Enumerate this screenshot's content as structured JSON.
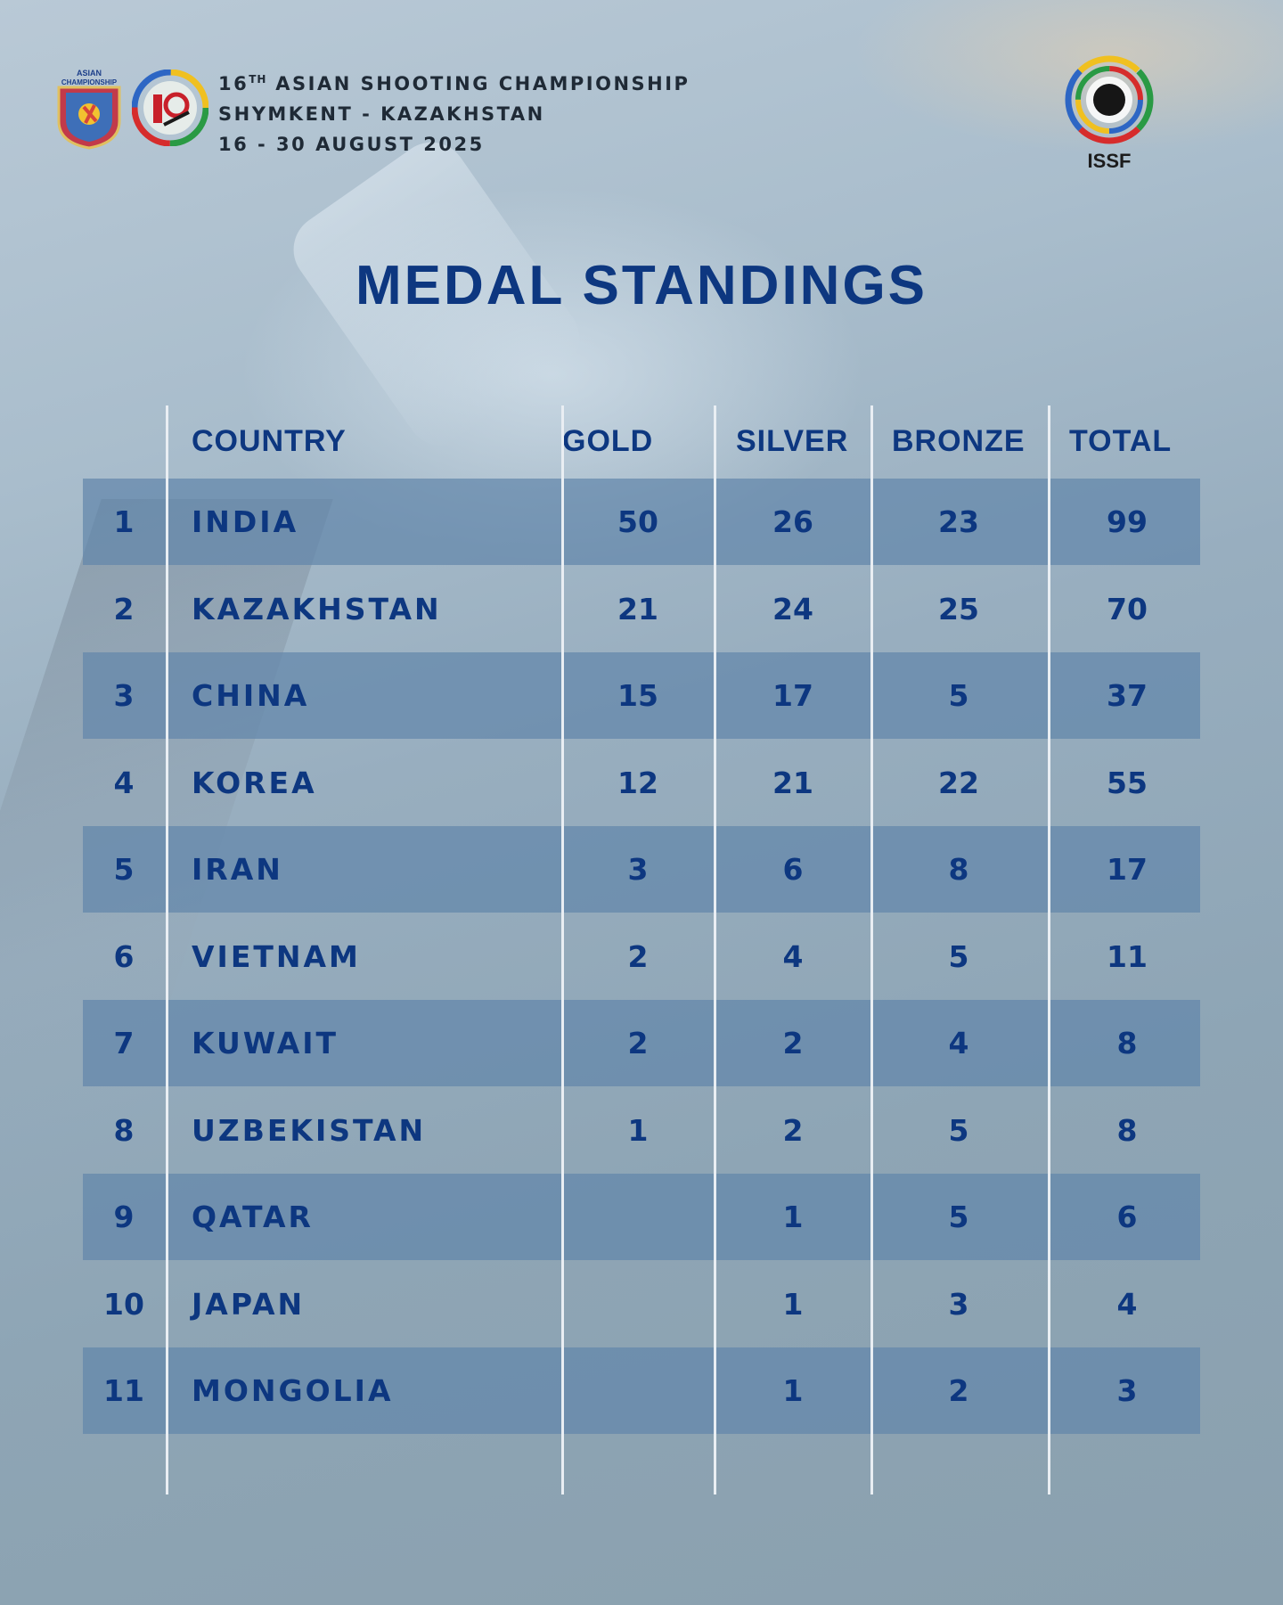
{
  "header": {
    "line1_prefix": "16",
    "line1_sup": "TH",
    "line1_rest": " ASIAN SHOOTING CHAMPIONSHIP",
    "line2": "SHYMKENT - KAZAKHSTAN",
    "line3": "16 - 30 AUGUST 2025",
    "asian_logo_text_top": "ASIAN",
    "asian_logo_text_bottom": "CHAMPIONSHIP",
    "issf_label": "ISSF"
  },
  "title": "MEDAL STANDINGS",
  "columns": {
    "country": "COUNTRY",
    "gold": "GOLD",
    "silver": "SILVER",
    "bronze": "BRONZE",
    "total": "TOTAL"
  },
  "rows": [
    {
      "rank": "1",
      "country": "INDIA",
      "gold": "50",
      "silver": "26",
      "bronze": "23",
      "total": "99"
    },
    {
      "rank": "2",
      "country": "KAZAKHSTAN",
      "gold": "21",
      "silver": "24",
      "bronze": "25",
      "total": "70"
    },
    {
      "rank": "3",
      "country": "CHINA",
      "gold": "15",
      "silver": "17",
      "bronze": "5",
      "total": "37"
    },
    {
      "rank": "4",
      "country": "KOREA",
      "gold": "12",
      "silver": "21",
      "bronze": "22",
      "total": "55"
    },
    {
      "rank": "5",
      "country": "IRAN",
      "gold": "3",
      "silver": "6",
      "bronze": "8",
      "total": "17"
    },
    {
      "rank": "6",
      "country": "VIETNAM",
      "gold": "2",
      "silver": "4",
      "bronze": "5",
      "total": "11"
    },
    {
      "rank": "7",
      "country": "KUWAIT",
      "gold": "2",
      "silver": "2",
      "bronze": "4",
      "total": "8"
    },
    {
      "rank": "8",
      "country": "UZBEKISTAN",
      "gold": "1",
      "silver": "2",
      "bronze": "5",
      "total": "8"
    },
    {
      "rank": "9",
      "country": "QATAR",
      "gold": "",
      "silver": "1",
      "bronze": "5",
      "total": "6"
    },
    {
      "rank": "10",
      "country": "JAPAN",
      "gold": "",
      "silver": "1",
      "bronze": "3",
      "total": "4"
    },
    {
      "rank": "11",
      "country": "MONGOLIA",
      "gold": "",
      "silver": "1",
      "bronze": "2",
      "total": "3"
    }
  ],
  "colors": {
    "title": "#0d3780",
    "row_shade": "#6286aa",
    "divider": "#e9eef3"
  }
}
